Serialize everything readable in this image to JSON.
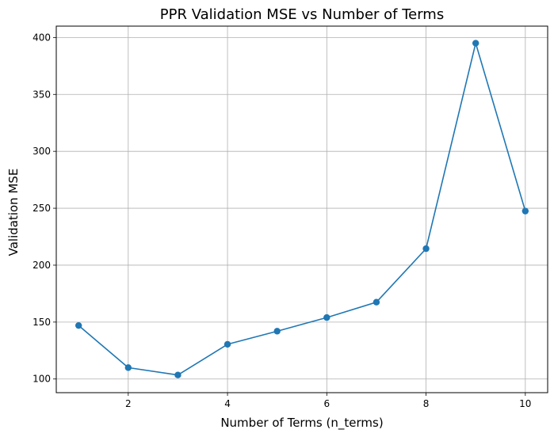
{
  "chart_data": {
    "type": "line",
    "title": "PPR Validation MSE vs Number of Terms",
    "xlabel": "Number of Terms (n_terms)",
    "ylabel": "Validation MSE",
    "xlim": [
      0.55,
      10.45
    ],
    "ylim": [
      88,
      410
    ],
    "xticks": [
      2,
      4,
      6,
      8,
      10
    ],
    "yticks": [
      100,
      150,
      200,
      250,
      300,
      350,
      400
    ],
    "grid": true,
    "series": [
      {
        "color": "#1f77b4",
        "marker": "circle",
        "x": [
          1,
          2,
          3,
          4,
          5,
          6,
          7,
          8,
          9,
          10
        ],
        "y": [
          147,
          110,
          103.5,
          130.5,
          142,
          154,
          167.5,
          214.5,
          395,
          247.5
        ]
      }
    ]
  }
}
